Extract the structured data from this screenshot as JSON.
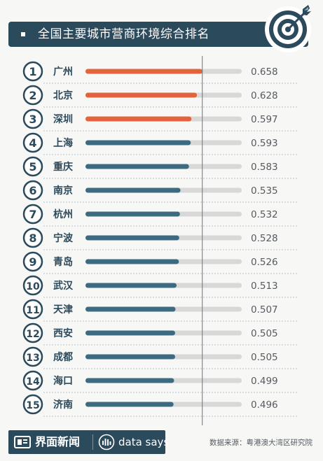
{
  "title": "全国主要城市营商环境综合排名",
  "colors": {
    "banner": "#2b4a5c",
    "top_bar": "#e2643c",
    "bar": "#3c6a80",
    "track": "#d8d8d8",
    "rank_circle": "#2b4a5c",
    "value_text": "#555b60"
  },
  "icons": {
    "title_icon": "target-icon",
    "footer_logo_icon": "jiemian-logo-icon",
    "footer_ds_icon": "data-says-icon"
  },
  "chart_data": {
    "type": "bar",
    "orientation": "horizontal",
    "categories": [
      "广州",
      "北京",
      "深圳",
      "上海",
      "重庆",
      "南京",
      "杭州",
      "宁波",
      "青岛",
      "武汉",
      "天津",
      "西安",
      "成都",
      "海口",
      "济南"
    ],
    "ranks": [
      "1",
      "2",
      "3",
      "4",
      "5",
      "6",
      "7",
      "8",
      "9",
      "10",
      "11",
      "12",
      "13",
      "14",
      "15"
    ],
    "values": [
      0.658,
      0.628,
      0.597,
      0.593,
      0.583,
      0.535,
      0.532,
      0.528,
      0.526,
      0.513,
      0.507,
      0.505,
      0.505,
      0.499,
      0.496
    ],
    "value_labels": [
      "0.658",
      "0.628",
      "0.597",
      "0.593",
      "0.583",
      "0.535",
      "0.532",
      "0.528",
      "0.526",
      "0.513",
      "0.507",
      "0.505",
      "0.505",
      "0.499",
      "0.496"
    ],
    "highlight_top": 3,
    "xlim": [
      0,
      0.88
    ],
    "reference_value": 0.658,
    "grid": false
  },
  "footer": {
    "brand": "界面新闻",
    "brand2": "data says",
    "source": "数据来源：粤港澳大湾区研究院"
  }
}
